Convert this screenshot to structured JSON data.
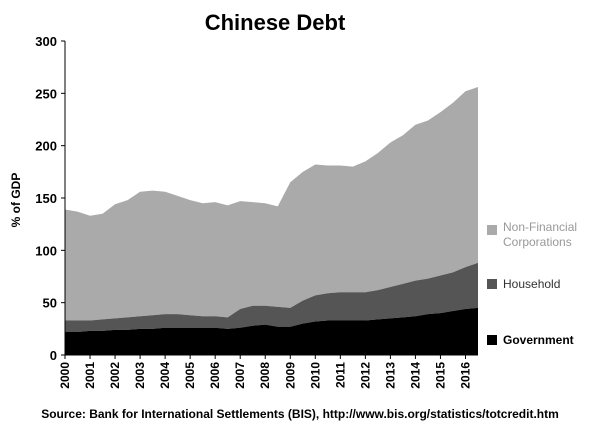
{
  "chart_data": {
    "type": "stacked_area",
    "title": "Chinese Debt",
    "y_label": "% of GDP",
    "source": "Source: Bank for International  Settlements (BIS), http://www.bis.org/statistics/totcredit.htm",
    "x": [
      2000,
      2000.5,
      2001,
      2001.5,
      2002,
      2002.5,
      2003,
      2003.5,
      2004,
      2004.5,
      2005,
      2005.5,
      2006,
      2006.5,
      2007,
      2007.5,
      2008,
      2008.5,
      2009,
      2009.5,
      2010,
      2010.5,
      2011,
      2011.5,
      2012,
      2012.5,
      2013,
      2013.5,
      2014,
      2014.5,
      2015,
      2015.5,
      2016,
      2016.5
    ],
    "xlim": [
      2000,
      2016.5
    ],
    "xticks": [
      2000,
      2001,
      2002,
      2003,
      2004,
      2005,
      2006,
      2007,
      2008,
      2009,
      2010,
      2011,
      2012,
      2013,
      2014,
      2015,
      2016
    ],
    "ylim": [
      0,
      300
    ],
    "yticks": [
      0,
      50,
      100,
      150,
      200,
      250,
      300
    ],
    "series": [
      {
        "name": "Government",
        "color": "#000000",
        "values": [
          22,
          22,
          23,
          23,
          24,
          24,
          25,
          25,
          26,
          26,
          26,
          26,
          26,
          25,
          26,
          28,
          29,
          27,
          27,
          30,
          32,
          33,
          33,
          33,
          33,
          34,
          35,
          36,
          37,
          39,
          40,
          42,
          44,
          45
        ]
      },
      {
        "name": "Household",
        "color": "#555555",
        "values": [
          11,
          11,
          10,
          11,
          11,
          12,
          12,
          13,
          13,
          13,
          12,
          11,
          11,
          11,
          18,
          19,
          18,
          19,
          18,
          22,
          25,
          26,
          27,
          27,
          27,
          28,
          30,
          32,
          34,
          34,
          36,
          37,
          40,
          43
        ]
      },
      {
        "name": "Non-Financial Corporations",
        "color": "#aaaaaa",
        "values": [
          106,
          104,
          100,
          101,
          109,
          112,
          119,
          119,
          117,
          113,
          110,
          108,
          109,
          107,
          103,
          99,
          98,
          96,
          120,
          123,
          125,
          122,
          121,
          120,
          125,
          131,
          138,
          142,
          149,
          151,
          156,
          162,
          168,
          168
        ]
      }
    ]
  }
}
